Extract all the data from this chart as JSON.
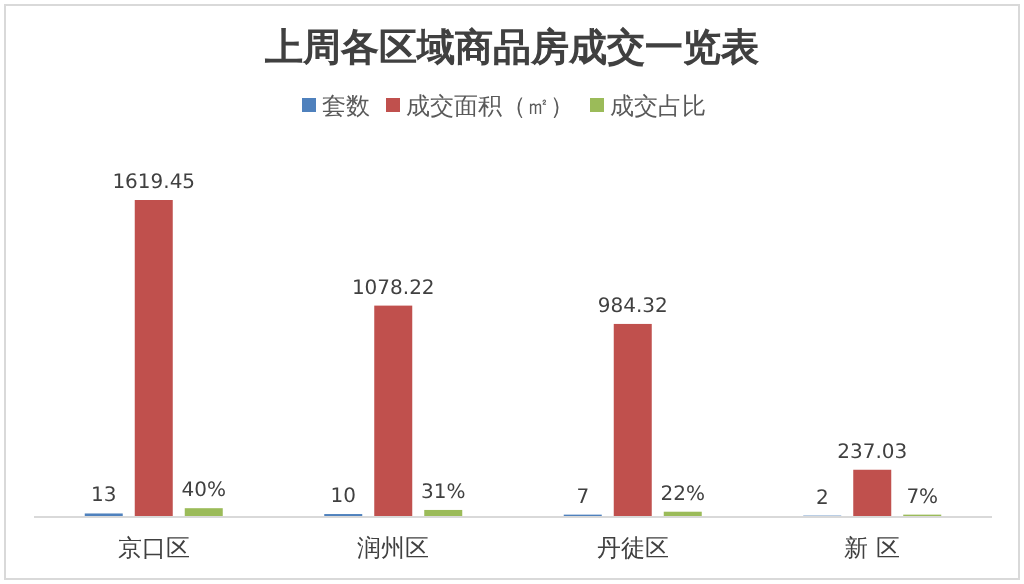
{
  "chart_data": {
    "type": "bar",
    "title": "上周各区域商品房成交一览表",
    "categories": [
      "京口区",
      "润州区",
      "丹徒区",
      "新 区"
    ],
    "series": [
      {
        "name": "套数",
        "color": "#4f81bd",
        "values": [
          13,
          10,
          7,
          2
        ],
        "value_labels": [
          "13",
          "10",
          "7",
          "2"
        ]
      },
      {
        "name": "成交面积（㎡）",
        "color": "#c0504d",
        "values": [
          1619.45,
          1078.22,
          984.32,
          237.03
        ],
        "value_labels": [
          "1619.45",
          "1078.22",
          "984.32",
          "237.03"
        ]
      },
      {
        "name": "成交占比",
        "color": "#9bbb59",
        "values": [
          40,
          31,
          22,
          7
        ],
        "value_labels": [
          "40%",
          "31%",
          "22%",
          "7%"
        ]
      }
    ],
    "legend": "top"
  }
}
